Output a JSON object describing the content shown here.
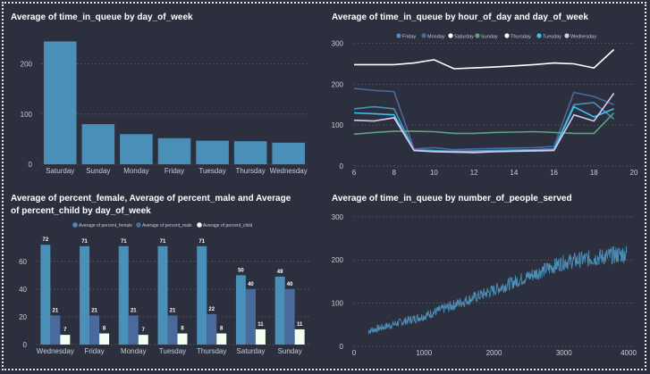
{
  "colors": {
    "background": "#2b2f3e",
    "bar": "#4a8fb8",
    "grid": "#555a6a",
    "tick": "#c8ccd6",
    "series": {
      "Friday": "#4a8fb8",
      "Monday": "#4a6a9c",
      "Saturday": "#ffffff",
      "Sunday": "#5fa37e",
      "Thursday": "#ffffff",
      "Tuesday": "#3dc2f0",
      "Wednesday": "#d9c8f2"
    },
    "percent": [
      "#4a8fb8",
      "#4a6a9c",
      "#f0fff0"
    ]
  },
  "chart_data": [
    {
      "type": "bar",
      "title": "Average of time_in_queue by day_of_week",
      "categories": [
        "Saturday",
        "Sunday",
        "Monday",
        "Friday",
        "Tuesday",
        "Thursday",
        "Wednesday"
      ],
      "values": [
        245,
        80,
        60,
        52,
        47,
        46,
        43
      ],
      "ylim": [
        0,
        260
      ],
      "yticks": [
        0,
        100,
        200
      ],
      "grid": true
    },
    {
      "type": "line",
      "title": "Average of time_in_queue by hour_of_day and day_of_week",
      "x": [
        6,
        7,
        8,
        9,
        10,
        11,
        12,
        13,
        14,
        15,
        16,
        17,
        18,
        19
      ],
      "xlim": [
        6,
        20
      ],
      "xticks": [
        6,
        8,
        10,
        12,
        14,
        16,
        18,
        20
      ],
      "ylim": [
        0,
        310
      ],
      "yticks": [
        0,
        100,
        200,
        300
      ],
      "legend_position": "top",
      "series": [
        {
          "name": "Friday",
          "values": [
            140,
            145,
            140,
            40,
            38,
            36,
            37,
            38,
            39,
            40,
            42,
            150,
            155,
            115
          ]
        },
        {
          "name": "Monday",
          "values": [
            190,
            185,
            182,
            42,
            45,
            40,
            42,
            43,
            44,
            45,
            48,
            180,
            170,
            150
          ]
        },
        {
          "name": "Saturday",
          "values": [
            null,
            null,
            null,
            null,
            null,
            null,
            null,
            null,
            null,
            null,
            null,
            null,
            null,
            null
          ]
        },
        {
          "name": "Sunday",
          "values": [
            78,
            82,
            85,
            85,
            84,
            80,
            80,
            82,
            83,
            84,
            82,
            80,
            80,
            130
          ]
        },
        {
          "name": "Thursday",
          "values": [
            248,
            248,
            248,
            252,
            260,
            238,
            240,
            242,
            245,
            248,
            252,
            250,
            240,
            285
          ]
        },
        {
          "name": "Tuesday",
          "values": [
            130,
            128,
            125,
            38,
            36,
            36,
            35,
            36,
            37,
            38,
            39,
            145,
            120,
            140
          ]
        },
        {
          "name": "Wednesday",
          "values": [
            112,
            110,
            118,
            38,
            35,
            34,
            33,
            35,
            36,
            37,
            38,
            125,
            110,
            178
          ]
        }
      ]
    },
    {
      "type": "bar",
      "title": "Average of percent_female, Average of percent_male and Average of percent_child by day_of_week",
      "categories": [
        "Wednesday",
        "Friday",
        "Monday",
        "Tuesday",
        "Thursday",
        "Saturday",
        "Sunday"
      ],
      "ylim": [
        0,
        76
      ],
      "yticks": [
        0,
        20,
        40,
        60
      ],
      "legend_position": "top",
      "series": [
        {
          "name": "Average of percent_female",
          "values": [
            72,
            71,
            71,
            71,
            71,
            50,
            49
          ],
          "labels": [
            "72",
            "71",
            "71",
            "71",
            "71",
            "50",
            "49"
          ]
        },
        {
          "name": "Average of percent_male",
          "values": [
            21,
            21,
            21,
            21,
            22,
            40,
            40
          ],
          "labels": [
            "21",
            "21",
            "21",
            "21",
            "22",
            "40",
            "40"
          ]
        },
        {
          "name": "Average of percent_child",
          "values": [
            7,
            8,
            7,
            8,
            8,
            11,
            11
          ],
          "labels": [
            "7",
            "8",
            "7",
            "8",
            "8",
            "11",
            "11"
          ]
        }
      ]
    },
    {
      "type": "line",
      "title": "Average of time_in_queue by number_of_people_served",
      "xlim": [
        0,
        4000
      ],
      "xticks": [
        0,
        1000,
        2000,
        3000,
        4000
      ],
      "xtick_labels": [
        "0",
        "1000",
        "2000",
        "3000",
        "4000"
      ],
      "ylim": [
        0,
        310
      ],
      "yticks": [
        0,
        100,
        200,
        300
      ],
      "x_start": 200,
      "x_end": 3900,
      "trend": {
        "x": [
          200,
          1000,
          2000,
          3000,
          3900
        ],
        "y": [
          35,
          70,
          130,
          195,
          215
        ]
      },
      "noise_amplitude": 18
    }
  ]
}
